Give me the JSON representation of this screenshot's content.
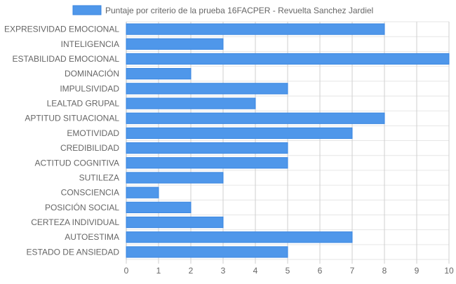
{
  "chart_data": {
    "type": "bar",
    "orientation": "horizontal",
    "categories": [
      "EXPRESIVIDAD EMOCIONAL",
      "INTELIGENCIA",
      "ESTABILIDAD EMOCIONAL",
      "DOMINACIÓN",
      "IMPULSIVIDAD",
      "LEALTAD GRUPAL",
      "APTITUD SITUACIONAL",
      "EMOTIVIDAD",
      "CREDIBILIDAD",
      "ACTITUD COGNITIVA",
      "SUTILEZA",
      "CONSCIENCIA",
      "POSICIÓN SOCIAL",
      "CERTEZA INDIVIDUAL",
      "AUTOESTIMA",
      "ESTADO DE ANSIEDAD"
    ],
    "series": [
      {
        "name": "Puntaje por criterio de la prueba 16FACPER - Revuelta Sanchez Jardiel",
        "values": [
          8,
          3,
          10,
          2,
          5,
          4,
          8,
          7,
          5,
          5,
          3,
          1,
          2,
          3,
          7,
          5
        ],
        "color": "#4f97ea",
        "border_color": "#3a86e0"
      }
    ],
    "xlim": [
      0,
      10
    ],
    "x_ticks": [
      "0",
      "1",
      "2",
      "3",
      "4",
      "5",
      "6",
      "7",
      "8",
      "9",
      "10"
    ],
    "grid": true,
    "legend_position": "top"
  }
}
